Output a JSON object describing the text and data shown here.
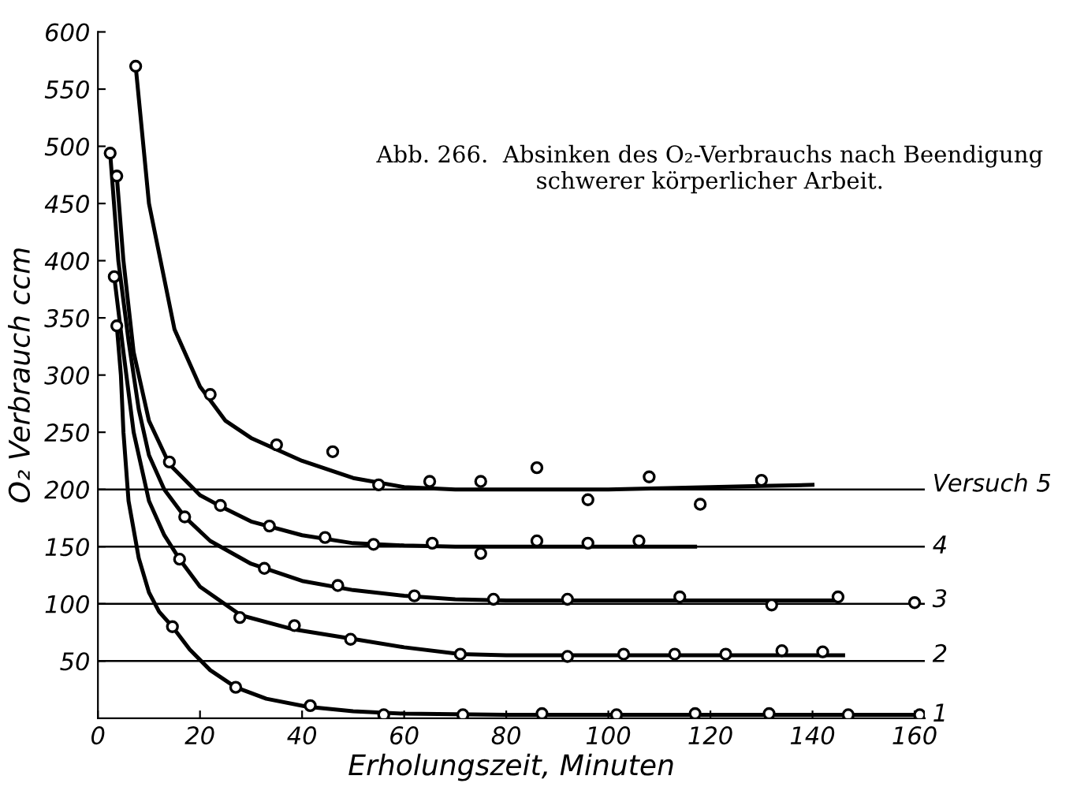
{
  "chart_data": {
    "type": "scatter",
    "title": "Abb. 266.  Absinken des O₂-Verbrauchs nach Beendigung schwerer körperlicher Arbeit.",
    "xlabel": "Erholungszeit, Minuten",
    "ylabel": "O₂ Verbrauch ccm",
    "xlim": [
      0,
      162
    ],
    "ylim": [
      0,
      600
    ],
    "xticks": [
      0,
      20,
      40,
      60,
      80,
      100,
      120,
      140,
      160
    ],
    "yticks": [
      50,
      100,
      150,
      200,
      250,
      300,
      350,
      400,
      450,
      500,
      550,
      600
    ],
    "marker": "circle",
    "grid": false,
    "legend": false,
    "ref_lines": [
      {
        "axis": "y",
        "value": 50,
        "color": "#000000"
      },
      {
        "axis": "y",
        "value": 100,
        "color": "#000000"
      },
      {
        "axis": "y",
        "value": 150,
        "color": "#000000"
      },
      {
        "axis": "y",
        "value": 200,
        "color": "#000000"
      }
    ],
    "series": [
      {
        "color": "#000000",
        "x": [
          7.4,
          22,
          35,
          46,
          55,
          65,
          75,
          86,
          96,
          108,
          118,
          130
        ],
        "values": [
          570,
          283,
          239,
          233,
          204,
          207,
          207,
          219,
          191,
          211,
          187,
          208
        ]
      },
      {
        "color": "#000000",
        "x": [
          3.7,
          14,
          24,
          33.6,
          44.5,
          54,
          65.5,
          75,
          86,
          96,
          106
        ],
        "values": [
          474,
          224,
          186,
          168,
          158,
          152,
          153,
          144,
          155,
          153,
          155
        ]
      },
      {
        "color": "#000000",
        "x": [
          2.4,
          17,
          32.6,
          47,
          62,
          77.5,
          92,
          114,
          132,
          145,
          160
        ],
        "values": [
          494,
          176,
          131,
          116,
          107,
          104,
          104,
          106,
          99,
          106,
          101
        ]
      },
      {
        "color": "#000000",
        "x": [
          3.2,
          16,
          27.8,
          38.5,
          49.5,
          71,
          92,
          103,
          113,
          123,
          134,
          142
        ],
        "values": [
          386,
          139,
          88,
          81,
          69,
          56,
          54,
          56,
          56,
          56,
          59,
          58
        ]
      },
      {
        "color": "#000000",
        "x": [
          3.7,
          14.6,
          27,
          41.6,
          56,
          71.5,
          87,
          101.6,
          117,
          131.5,
          147,
          161
        ],
        "values": [
          343,
          80,
          27,
          11,
          3,
          3,
          4,
          3,
          4,
          4,
          3,
          3
        ]
      },
      {
        "type": "line",
        "name": "Versuch 5",
        "color": "#000000",
        "line_style": "solid",
        "marker": "none",
        "x": [
          7.4,
          10,
          15,
          20,
          25,
          30,
          40,
          50,
          60,
          70,
          80,
          90,
          100,
          110,
          120,
          130,
          140
        ],
        "values": [
          570,
          450,
          340,
          290,
          260,
          245,
          225,
          210,
          202,
          200,
          200,
          200,
          200,
          201,
          202,
          203,
          204
        ]
      },
      {
        "type": "line",
        "name": "4",
        "color": "#000000",
        "line_style": "solid",
        "marker": "none",
        "x": [
          3.7,
          5,
          7,
          10,
          14,
          20,
          25,
          30,
          40,
          50,
          60,
          70,
          80,
          90,
          100,
          117
        ],
        "values": [
          474,
          400,
          320,
          260,
          222,
          195,
          183,
          172,
          160,
          153,
          151,
          150,
          150,
          150,
          150,
          150
        ]
      },
      {
        "type": "line",
        "name": "3",
        "color": "#000000",
        "line_style": "solid",
        "marker": "none",
        "x": [
          2.4,
          4,
          6,
          8,
          10,
          13,
          17,
          22,
          30,
          40,
          50,
          60,
          70,
          80,
          100,
          120,
          145
        ],
        "values": [
          494,
          400,
          330,
          270,
          230,
          200,
          176,
          155,
          135,
          120,
          112,
          107,
          104,
          103,
          103,
          103,
          103
        ]
      },
      {
        "type": "line",
        "name": "2",
        "color": "#000000",
        "line_style": "solid",
        "marker": "none",
        "x": [
          3.2,
          5,
          7,
          10,
          13,
          16,
          20,
          28,
          38,
          49,
          60,
          71,
          80,
          100,
          120,
          146
        ],
        "values": [
          386,
          320,
          250,
          190,
          160,
          139,
          115,
          90,
          78,
          70,
          62,
          56,
          55,
          55,
          55,
          55
        ]
      },
      {
        "type": "line",
        "name": "1",
        "color": "#000000",
        "line_style": "solid",
        "marker": "none",
        "x": [
          3.7,
          4.5,
          5,
          6,
          8,
          10,
          12,
          14.6,
          18,
          22,
          27,
          33,
          41,
          50,
          60,
          80,
          100,
          120,
          140,
          160
        ],
        "values": [
          343,
          300,
          250,
          190,
          140,
          110,
          93,
          80,
          60,
          42,
          27,
          17,
          10,
          6,
          4,
          3,
          3,
          3,
          3,
          3
        ]
      }
    ]
  }
}
